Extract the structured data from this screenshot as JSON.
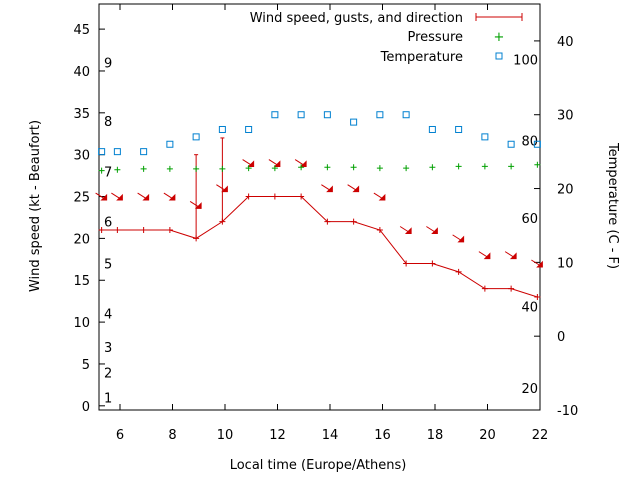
{
  "chart_data": {
    "type": "line",
    "xlabel": "Local time (Europe/Athens)",
    "ylabel": "Wind speed (kt - Beaufort)",
    "y2label": "Temperature (C - F)",
    "xlim": [
      5.2,
      22
    ],
    "ylim": [
      -0.5,
      48
    ],
    "y2lim": [
      -10,
      45
    ],
    "xticks": [
      6,
      8,
      10,
      12,
      14,
      16,
      18,
      20,
      22
    ],
    "yticks": [
      0,
      5,
      10,
      15,
      20,
      25,
      30,
      35,
      40,
      45
    ],
    "y2ticks": [
      -10,
      0,
      10,
      20,
      30,
      40
    ],
    "grid": false,
    "legend_position": "top-right",
    "beaufort_labels": [
      {
        "label": "1",
        "y": 1
      },
      {
        "label": "2",
        "y": 4
      },
      {
        "label": "3",
        "y": 7
      },
      {
        "label": "4",
        "y": 11
      },
      {
        "label": "5",
        "y": 17
      },
      {
        "label": "6",
        "y": 22
      },
      {
        "label": "7",
        "y": 28
      },
      {
        "label": "8",
        "y": 34
      },
      {
        "label": "9",
        "y": 41
      }
    ],
    "fahrenheit_labels": [
      {
        "label": "20",
        "y2": -7
      },
      {
        "label": "40",
        "y2": 4
      },
      {
        "label": "60",
        "y2": 16
      },
      {
        "label": "80",
        "y2": 26.5
      },
      {
        "label": "100",
        "y2": 37.5
      }
    ],
    "series": [
      {
        "name": "Wind speed, gusts, and direction",
        "color": "#cc0000",
        "x": [
          5.3,
          5.9,
          6.9,
          7.9,
          8.9,
          9.9,
          10.9,
          11.9,
          12.9,
          13.9,
          14.9,
          15.9,
          16.9,
          17.9,
          18.9,
          19.9,
          20.9,
          21.9
        ],
        "values": [
          21,
          21,
          21,
          21,
          20,
          22,
          25,
          25,
          25,
          22,
          22,
          21,
          17,
          17,
          16,
          14,
          14,
          13
        ],
        "gusts": [
          {
            "x": 8.9,
            "value": 30
          },
          {
            "x": 9.9,
            "value": 32
          }
        ]
      },
      {
        "name": "Pressure",
        "color": "#00a000",
        "x": [
          5.3,
          5.9,
          6.9,
          7.9,
          8.9,
          9.9,
          10.9,
          11.9,
          12.9,
          13.9,
          14.9,
          15.9,
          16.9,
          17.9,
          18.9,
          19.9,
          20.9,
          21.9
        ],
        "values": [
          28.1,
          28.2,
          28.3,
          28.3,
          28.3,
          28.3,
          28.4,
          28.4,
          28.5,
          28.5,
          28.5,
          28.4,
          28.4,
          28.5,
          28.6,
          28.6,
          28.6,
          28.8
        ]
      },
      {
        "name": "Temperature",
        "color": "#0080d0",
        "axis": "y2",
        "x": [
          5.3,
          5.9,
          6.9,
          7.9,
          8.9,
          9.9,
          10.9,
          11.9,
          12.9,
          13.9,
          14.9,
          15.9,
          16.9,
          17.9,
          18.9,
          19.9,
          20.9,
          21.9
        ],
        "values": [
          25,
          25,
          25,
          26,
          27,
          28,
          28,
          30,
          30,
          30,
          29,
          30,
          30,
          28,
          28,
          27,
          26,
          26
        ]
      }
    ]
  }
}
